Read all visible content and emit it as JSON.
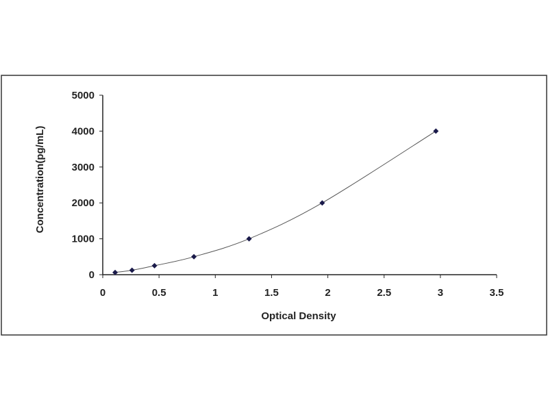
{
  "chart_data": {
    "type": "scatter",
    "xlabel": "Optical Density",
    "ylabel": "Concentration(pg/mL)",
    "xlim": [
      0,
      3.5
    ],
    "ylim": [
      0,
      5000
    ],
    "xticks": [
      "0",
      "0.5",
      "1",
      "1.5",
      "2",
      "2.5",
      "3",
      "3.5"
    ],
    "yticks": [
      "0",
      "1000",
      "2000",
      "3000",
      "4000",
      "5000"
    ],
    "grid": false,
    "fit_curve": true,
    "points": [
      {
        "x": 0.11,
        "y": 62.5
      },
      {
        "x": 0.26,
        "y": 125
      },
      {
        "x": 0.46,
        "y": 250
      },
      {
        "x": 0.81,
        "y": 500
      },
      {
        "x": 1.3,
        "y": 1000
      },
      {
        "x": 1.95,
        "y": 2000
      },
      {
        "x": 2.96,
        "y": 4000
      }
    ],
    "colors": {
      "marker": "#1a1a4a",
      "curve": "#555555"
    }
  }
}
